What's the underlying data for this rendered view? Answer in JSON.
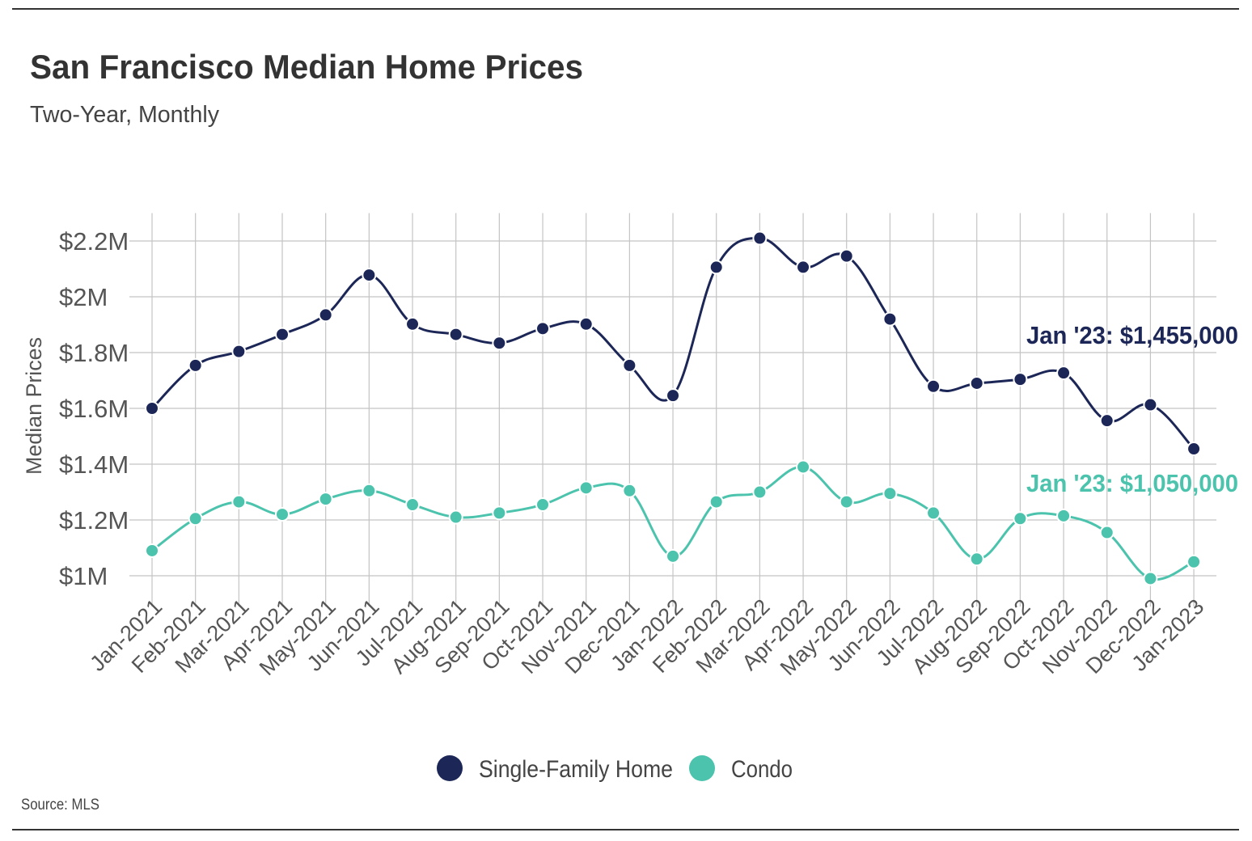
{
  "chart_data": {
    "type": "line",
    "title": "San Francisco Median Home Prices",
    "subtitle": "Two-Year, Monthly",
    "ylabel": "Median Prices",
    "xlabel": "",
    "ylim": [
      930000,
      2300000
    ],
    "yticks": [
      1000000,
      1200000,
      1400000,
      1600000,
      1800000,
      2000000,
      2200000
    ],
    "ytick_labels": [
      "$1M",
      "$1.2M",
      "$1.4M",
      "$1.6M",
      "$1.8M",
      "$2M",
      "$2.2M"
    ],
    "grid": true,
    "categories": [
      "Jan-2021",
      "Feb-2021",
      "Mar-2021",
      "Apr-2021",
      "May-2021",
      "Jun-2021",
      "Jul-2021",
      "Aug-2021",
      "Sep-2021",
      "Oct-2021",
      "Nov-2021",
      "Dec-2021",
      "Jan-2022",
      "Feb-2022",
      "Mar-2022",
      "Apr-2022",
      "May-2022",
      "Jun-2022",
      "Jul-2022",
      "Aug-2022",
      "Sep-2022",
      "Oct-2022",
      "Nov-2022",
      "Dec-2022",
      "Jan-2023"
    ],
    "series": [
      {
        "name": "Single-Family Home",
        "color": "#1c2757",
        "values": [
          1600000,
          1754000,
          1804000,
          1865000,
          1935000,
          2078000,
          1902000,
          1865000,
          1834000,
          1886000,
          1902000,
          1754000,
          1646000,
          2106000,
          2210000,
          2106000,
          2146000,
          1920000,
          1679000,
          1690000,
          1704000,
          1727000,
          1556000,
          1613000,
          1455000
        ],
        "annotation": "Jan '23: $1,455,000"
      },
      {
        "name": "Condo",
        "color": "#4cc3ad",
        "values": [
          1090000,
          1205000,
          1265000,
          1220000,
          1275000,
          1305000,
          1255000,
          1210000,
          1225000,
          1255000,
          1315000,
          1305000,
          1070000,
          1265000,
          1300000,
          1390000,
          1265000,
          1295000,
          1225000,
          1060000,
          1205000,
          1215000,
          1155000,
          990000,
          1050000
        ],
        "annotation": "Jan '23: $1,050,000"
      }
    ],
    "legend_position": "bottom-center",
    "source": "Source:  MLS"
  }
}
